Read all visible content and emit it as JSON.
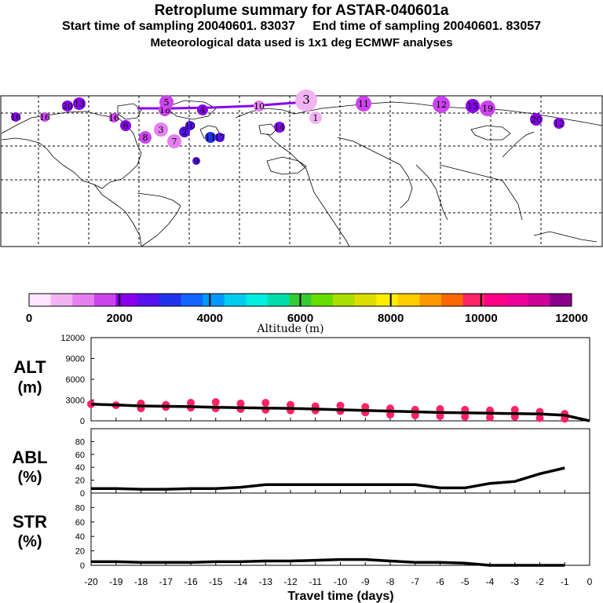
{
  "header": {
    "title": "Retroplume summary for ASTAR-040601a",
    "subtitle": "Start time of sampling 20040601. 83037     End time of sampling 20040601. 83057",
    "subtitle2": "Meteorological data used is 1x1 deg ECMWF analyses"
  },
  "colorbar": {
    "label": "Altitude (m)",
    "tick_labels": [
      "0",
      "2000",
      "4000",
      "6000",
      "8000",
      "10000",
      "12000"
    ],
    "colors": [
      "#ffe6ff",
      "#f2b3f2",
      "#e680f0",
      "#cc44ee",
      "#8800ee",
      "#5511ee",
      "#2233ee",
      "#1166ff",
      "#0099ff",
      "#00ccee",
      "#00eedd",
      "#00ddaa",
      "#33cc33",
      "#66dd00",
      "#aadd00",
      "#dddd00",
      "#ffee00",
      "#ffcc00",
      "#ff9900",
      "#ff6600",
      "#ff2266",
      "#ff0088",
      "#ee0099",
      "#cc0099",
      "#880088"
    ]
  },
  "map": {
    "labels": [
      "16",
      "16",
      "20",
      "13",
      "16",
      "18",
      "3",
      "11",
      "12",
      "15",
      "19",
      "20",
      "12",
      "3",
      "2",
      "4",
      "5",
      "10",
      "11",
      "8",
      "7",
      "6",
      "9",
      "14",
      "17",
      "10",
      "1"
    ]
  },
  "panels": {
    "alt": {
      "label_line1": "ALT",
      "label_line2": "(m)",
      "yticks": [
        "12000",
        "9000",
        "6000",
        "3000",
        "0"
      ]
    },
    "abl": {
      "label_line1": "ABL",
      "label_line2": "(%)",
      "yticks": [
        "80",
        "60",
        "40",
        "20",
        "0"
      ]
    },
    "str": {
      "label_line1": "STR",
      "label_line2": "(%)",
      "yticks": [
        "80",
        "60",
        "40",
        "20",
        "0"
      ]
    }
  },
  "xaxis": {
    "label": "Travel time (days)",
    "tick_labels": [
      "-20",
      "-19",
      "-18",
      "-17",
      "-16",
      "-15",
      "-14",
      "-13",
      "-12",
      "-11",
      "-10",
      "-9",
      "-8",
      "-7",
      "-6",
      "-5",
      "-4",
      "-3",
      "-2",
      "-1",
      "0"
    ]
  },
  "chart_data": [
    {
      "type": "line",
      "title": "ALT",
      "ylabel": "(m)",
      "xlabel": "Travel time (days)",
      "xlim": [
        -20,
        0
      ],
      "ylim": [
        0,
        12000
      ],
      "x": [
        -20,
        -19,
        -18,
        -17,
        -16,
        -15,
        -14,
        -13,
        -12,
        -11,
        -10,
        -9,
        -8,
        -7,
        -6,
        -5,
        -4,
        -3,
        -2,
        -1,
        0
      ],
      "series": [
        {
          "name": "mean altitude",
          "values": [
            2400,
            2300,
            2150,
            2100,
            2050,
            1950,
            1900,
            1850,
            1800,
            1700,
            1600,
            1500,
            1400,
            1300,
            1200,
            1150,
            1100,
            1050,
            1000,
            800,
            0
          ]
        }
      ],
      "cluster_points": {
        "x": [
          -20,
          -19,
          -18,
          -18,
          -17,
          -17,
          -16,
          -16,
          -15,
          -15,
          -14,
          -14,
          -13,
          -13,
          -12,
          -12,
          -11,
          -11,
          -10,
          -10,
          -9,
          -9,
          -8,
          -8,
          -7,
          -7,
          -6,
          -6,
          -5,
          -5,
          -4,
          -4,
          -3,
          -3,
          -2,
          -2,
          -1,
          -1
        ],
        "y": [
          2400,
          2250,
          2500,
          1800,
          2300,
          2000,
          2600,
          1900,
          2700,
          1800,
          2500,
          1700,
          2600,
          1600,
          2300,
          1500,
          2100,
          1500,
          2200,
          1400,
          2000,
          1200,
          1800,
          900,
          1600,
          800,
          1700,
          700,
          1600,
          600,
          1500,
          500,
          1600,
          600,
          1300,
          400,
          1000,
          300
        ]
      }
    },
    {
      "type": "line",
      "title": "ABL",
      "ylabel": "(%)",
      "xlim": [
        -20,
        0
      ],
      "ylim": [
        0,
        100
      ],
      "x": [
        -20,
        -19,
        -18,
        -17,
        -16,
        -15,
        -14,
        -13,
        -12,
        -11,
        -10,
        -9,
        -8,
        -7,
        -6,
        -5,
        -4,
        -3,
        -2,
        -1
      ],
      "series": [
        {
          "name": "ABL fraction",
          "values": [
            7,
            7,
            6,
            6,
            7,
            7,
            9,
            13,
            13,
            13,
            13,
            13,
            13,
            13,
            8,
            8,
            15,
            18,
            30,
            39
          ]
        }
      ]
    },
    {
      "type": "line",
      "title": "STR",
      "ylabel": "(%)",
      "xlim": [
        -20,
        0
      ],
      "ylim": [
        0,
        100
      ],
      "x": [
        -20,
        -19,
        -18,
        -17,
        -16,
        -15,
        -14,
        -13,
        -12,
        -11,
        -10,
        -9,
        -8,
        -7,
        -6,
        -5,
        -4,
        -3,
        -2,
        -1
      ],
      "series": [
        {
          "name": "STR fraction",
          "values": [
            5,
            5,
            4,
            4,
            4,
            5,
            5,
            6,
            6,
            7,
            8,
            8,
            6,
            4,
            4,
            3,
            0,
            0,
            0,
            0
          ]
        }
      ]
    }
  ]
}
